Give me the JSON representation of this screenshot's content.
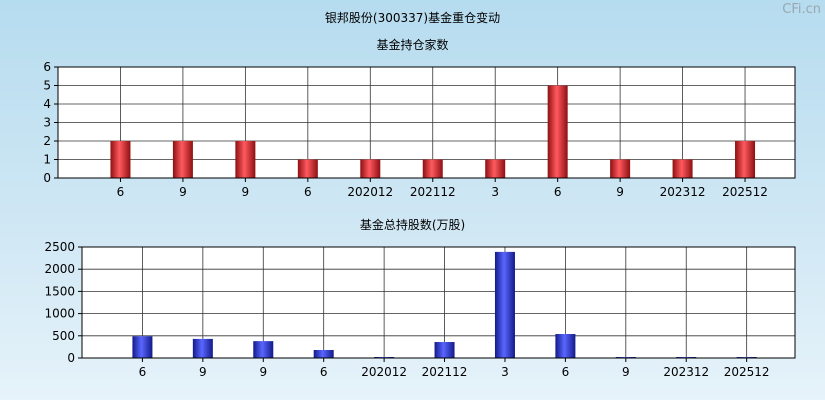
{
  "title": "银邦股份(300337)基金重仓变动",
  "watermark": "CFi.cn",
  "chart_data": [
    {
      "type": "bar",
      "title": "基金持仓家数",
      "categories": [
        "6",
        "9",
        "9",
        "6",
        "202012",
        "202112",
        "3",
        "6",
        "9",
        "202312",
        "202512"
      ],
      "values": [
        2,
        2,
        2,
        1,
        1,
        1,
        1,
        5,
        1,
        1,
        2
      ],
      "ylim": [
        0,
        6
      ],
      "yticks": [
        0,
        1,
        2,
        3,
        4,
        5,
        6
      ],
      "grid": true,
      "color": "#e0242a"
    },
    {
      "type": "bar",
      "title": "基金总持股数(万股)",
      "categories": [
        "6",
        "9",
        "9",
        "6",
        "202012",
        "202112",
        "3",
        "6",
        "9",
        "202312",
        "202512"
      ],
      "values": [
        490,
        430,
        380,
        180,
        10,
        360,
        2390,
        540,
        10,
        10,
        10
      ],
      "ylim": [
        0,
        2500
      ],
      "yticks": [
        0,
        500,
        1000,
        1500,
        2000,
        2500
      ],
      "grid": true,
      "color": "#2a35d6"
    }
  ]
}
